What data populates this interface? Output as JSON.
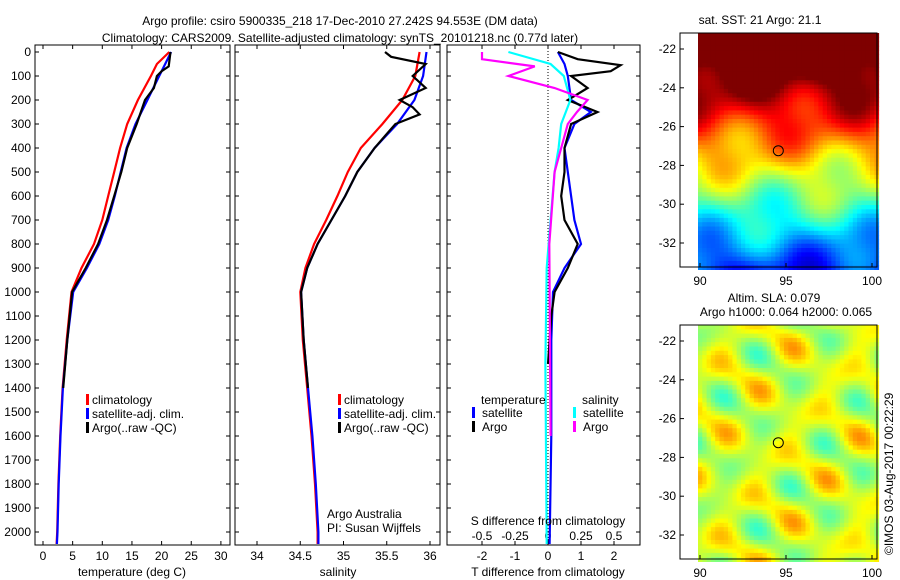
{
  "title_line1": "Argo profile: csiro 5900335_218 17-Dec-2010 27.242S 94.553E (DM data)",
  "title_line2": "Climatology: CARS2009. Satellite-adjusted climatology: synTS_20101218.nc (0.77d later)",
  "credit": "©IMOS 03-Aug-2017 00:22:29",
  "colors": {
    "climatology": "#ff0000",
    "satellite": "#0000ff",
    "argo": "#000000",
    "sal_satellite": "#00ffff",
    "sal_argo": "#ff00ff"
  },
  "chart_data": [
    {
      "type": "line",
      "xlabel": "temperature (deg C)",
      "ylabel": "",
      "xlim": [
        -1.5,
        31.5
      ],
      "ylim": [
        2050,
        0
      ],
      "xticks": [
        "0",
        "5",
        "10",
        "15",
        "20",
        "25",
        "30"
      ],
      "xtick_values": [
        0,
        5,
        10,
        15,
        20,
        25,
        30
      ],
      "yticks": [
        "0",
        "100",
        "200",
        "300",
        "400",
        "500",
        "600",
        "700",
        "800",
        "900",
        "1000",
        "1100",
        "1200",
        "1300",
        "1400",
        "1500",
        "1600",
        "1700",
        "1800",
        "1900",
        "2000"
      ],
      "legend": [
        "climatology",
        "satellite-adj. clim.",
        "Argo(..raw -QC)"
      ],
      "series": [
        {
          "name": "climatology",
          "color": "#ff0000",
          "points": [
            [
              0,
              21.3
            ],
            [
              50,
              19.2
            ],
            [
              100,
              18.2
            ],
            [
              200,
              16
            ],
            [
              300,
              14.2
            ],
            [
              400,
              13
            ],
            [
              500,
              12
            ],
            [
              600,
              11
            ],
            [
              700,
              10
            ],
            [
              800,
              8.6
            ],
            [
              900,
              6.5
            ],
            [
              1000,
              4.8
            ],
            [
              1200,
              4
            ],
            [
              1400,
              3.3
            ],
            [
              1600,
              2.9
            ],
            [
              1800,
              2.6
            ],
            [
              2000,
              2.4
            ],
            [
              2050,
              2.3
            ]
          ]
        },
        {
          "name": "satellite-adj. clim.",
          "color": "#0000ff",
          "points": [
            [
              0,
              21.6
            ],
            [
              50,
              20.6
            ],
            [
              100,
              19.6
            ],
            [
              200,
              17.6
            ],
            [
              300,
              15.6
            ],
            [
              400,
              14.1
            ],
            [
              500,
              13.1
            ],
            [
              600,
              12.1
            ],
            [
              700,
              11
            ],
            [
              800,
              9.5
            ],
            [
              900,
              7.4
            ],
            [
              1000,
              5.1
            ],
            [
              1200,
              4.1
            ],
            [
              1400,
              3.35
            ],
            [
              1600,
              2.95
            ],
            [
              1800,
              2.65
            ],
            [
              2000,
              2.45
            ],
            [
              2050,
              2.35
            ]
          ]
        },
        {
          "name": "Argo(..raw -QC)",
          "color": "#000000",
          "points": [
            [
              0,
              21.5
            ],
            [
              60,
              21.2
            ],
            [
              80,
              20
            ],
            [
              100,
              19.2
            ],
            [
              150,
              18.7
            ],
            [
              200,
              17.2
            ],
            [
              300,
              15.8
            ],
            [
              400,
              14.2
            ],
            [
              500,
              13.2
            ],
            [
              600,
              12
            ],
            [
              700,
              10.8
            ],
            [
              800,
              9.3
            ],
            [
              900,
              7.2
            ],
            [
              1000,
              4.9
            ],
            [
              1200,
              4.1
            ],
            [
              1400,
              3.4
            ]
          ]
        }
      ]
    },
    {
      "type": "line",
      "xlabel": "salinity",
      "xlim": [
        33.75,
        36.1
      ],
      "ylim": [
        2050,
        0
      ],
      "xticks": [
        "34",
        "34.5",
        "35",
        "35.5",
        "36"
      ],
      "xtick_values": [
        34,
        34.5,
        35,
        35.5,
        36
      ],
      "legend": [
        "climatology",
        "satellite-adj. clim.",
        "Argo(..raw -QC)"
      ],
      "annotation": [
        "Argo Australia",
        "PI: Susan Wijffels"
      ],
      "series": [
        {
          "name": "climatology",
          "color": "#ff0000",
          "points": [
            [
              0,
              35.88
            ],
            [
              100,
              35.83
            ],
            [
              200,
              35.68
            ],
            [
              300,
              35.45
            ],
            [
              400,
              35.2
            ],
            [
              500,
              35.05
            ],
            [
              600,
              34.93
            ],
            [
              700,
              34.8
            ],
            [
              800,
              34.66
            ],
            [
              900,
              34.56
            ],
            [
              1000,
              34.5
            ],
            [
              1200,
              34.53
            ],
            [
              1400,
              34.58
            ],
            [
              1600,
              34.63
            ],
            [
              1800,
              34.67
            ],
            [
              2000,
              34.7
            ],
            [
              2050,
              34.7
            ]
          ]
        },
        {
          "name": "satellite-adj. clim.",
          "color": "#0000ff",
          "points": [
            [
              0,
              35.96
            ],
            [
              100,
              35.92
            ],
            [
              200,
              35.82
            ],
            [
              300,
              35.62
            ],
            [
              400,
              35.36
            ],
            [
              500,
              35.16
            ],
            [
              600,
              35.02
            ],
            [
              700,
              34.86
            ],
            [
              800,
              34.7
            ],
            [
              900,
              34.58
            ],
            [
              1000,
              34.51
            ],
            [
              1200,
              34.54
            ],
            [
              1400,
              34.59
            ],
            [
              1600,
              34.64
            ],
            [
              1800,
              34.68
            ],
            [
              2000,
              34.71
            ],
            [
              2050,
              34.71
            ]
          ]
        },
        {
          "name": "Argo(..raw -QC)",
          "color": "#000000",
          "points": [
            [
              0,
              35.48
            ],
            [
              20,
              35.55
            ],
            [
              50,
              35.95
            ],
            [
              100,
              35.8
            ],
            [
              150,
              35.95
            ],
            [
              200,
              35.65
            ],
            [
              230,
              35.8
            ],
            [
              260,
              35.88
            ],
            [
              300,
              35.6
            ],
            [
              400,
              35.36
            ],
            [
              500,
              35.16
            ],
            [
              600,
              35.02
            ],
            [
              700,
              34.86
            ],
            [
              800,
              34.7
            ],
            [
              900,
              34.58
            ],
            [
              1000,
              34.51
            ],
            [
              1200,
              34.54
            ],
            [
              1400,
              34.59
            ]
          ]
        }
      ]
    },
    {
      "type": "line",
      "xlabel": "T difference from climatology",
      "xlabel_top": "S difference from climatology",
      "xlim": [
        -3,
        3
      ],
      "ylim": [
        2050,
        0
      ],
      "xticks": [
        "-2",
        "-1",
        "0",
        "1",
        "2"
      ],
      "xtick_values": [
        -2,
        -1,
        0,
        1,
        2
      ],
      "s_xticks": [
        "-0.5",
        "-0.25",
        "0",
        "0.25",
        "0.5"
      ],
      "s_xtick_values": [
        -0.5,
        -0.25,
        0,
        0.25,
        0.5
      ],
      "legend": {
        "temperature_title": "temperature",
        "salinity_title": "salinity",
        "items": [
          "satellite",
          "Argo",
          "satellite",
          "Argo"
        ]
      },
      "series": [
        {
          "name": "temperature satellite",
          "color": "#0000ff",
          "axis": "T",
          "points": [
            [
              0,
              0.3
            ],
            [
              50,
              0.5
            ],
            [
              100,
              0.6
            ],
            [
              200,
              0.7
            ],
            [
              250,
              1.3
            ],
            [
              300,
              0.8
            ],
            [
              400,
              0.5
            ],
            [
              500,
              0.6
            ],
            [
              600,
              0.7
            ],
            [
              700,
              0.8
            ],
            [
              800,
              1
            ],
            [
              900,
              0.5
            ],
            [
              1000,
              0.15
            ],
            [
              1200,
              0.1
            ],
            [
              1600,
              0.1
            ],
            [
              2050,
              0.05
            ]
          ]
        },
        {
          "name": "temperature Argo",
          "color": "#000000",
          "axis": "T",
          "points": [
            [
              0,
              0.3
            ],
            [
              30,
              0.9
            ],
            [
              55,
              2.2
            ],
            [
              80,
              1.9
            ],
            [
              100,
              0.7
            ],
            [
              150,
              1.2
            ],
            [
              200,
              0.6
            ],
            [
              250,
              1.5
            ],
            [
              300,
              0.7
            ],
            [
              400,
              0.5
            ],
            [
              500,
              0.5
            ],
            [
              600,
              0.4
            ],
            [
              700,
              0.5
            ],
            [
              800,
              0.9
            ],
            [
              900,
              0.6
            ],
            [
              1000,
              0.2
            ],
            [
              1100,
              0.1
            ],
            [
              1300,
              0
            ]
          ]
        },
        {
          "name": "salinity satellite",
          "color": "#00ffff",
          "axis": "S",
          "points": [
            [
              0,
              -0.3
            ],
            [
              50,
              0.02
            ],
            [
              100,
              0.12
            ],
            [
              200,
              0.17
            ],
            [
              300,
              0.1
            ],
            [
              400,
              0.08
            ],
            [
              500,
              0.05
            ],
            [
              700,
              0.02
            ],
            [
              900,
              -0.01
            ],
            [
              1300,
              -0.02
            ],
            [
              2050,
              -0.01
            ]
          ]
        },
        {
          "name": "salinity Argo",
          "color": "#ff00ff",
          "axis": "S",
          "points": [
            [
              0,
              -0.5
            ],
            [
              30,
              -0.5
            ],
            [
              60,
              -0.1
            ],
            [
              100,
              -0.3
            ],
            [
              150,
              0.05
            ],
            [
              200,
              0.3
            ],
            [
              250,
              0.22
            ],
            [
              300,
              0.15
            ],
            [
              400,
              0.1
            ],
            [
              500,
              0.05
            ],
            [
              800,
              0.01
            ],
            [
              1600,
              0.02
            ]
          ]
        }
      ]
    },
    {
      "type": "heatmap",
      "title": "sat. SST: 21 Argo: 21.1",
      "xticks": [
        "90",
        "95",
        "100"
      ],
      "xtick_values": [
        90,
        95,
        100
      ],
      "yticks": [
        "-22",
        "-24",
        "-26",
        "-28",
        "-30",
        "-32"
      ],
      "ytick_values": [
        -22,
        -24,
        -26,
        -28,
        -30,
        -32
      ],
      "marker": {
        "lon": 94.553,
        "lat": -27.242
      }
    },
    {
      "type": "heatmap",
      "title_line1": "Altim. SLA: 0.079",
      "title_line2": "Argo h1000: 0.064 h2000: 0.065",
      "xticks": [
        "90",
        "95",
        "100"
      ],
      "xtick_values": [
        90,
        95,
        100
      ],
      "yticks": [
        "-22",
        "-24",
        "-26",
        "-28",
        "-30",
        "-32"
      ],
      "ytick_values": [
        -22,
        -24,
        -26,
        -28,
        -30,
        -32
      ],
      "marker": {
        "lon": 94.553,
        "lat": -27.242
      }
    }
  ]
}
